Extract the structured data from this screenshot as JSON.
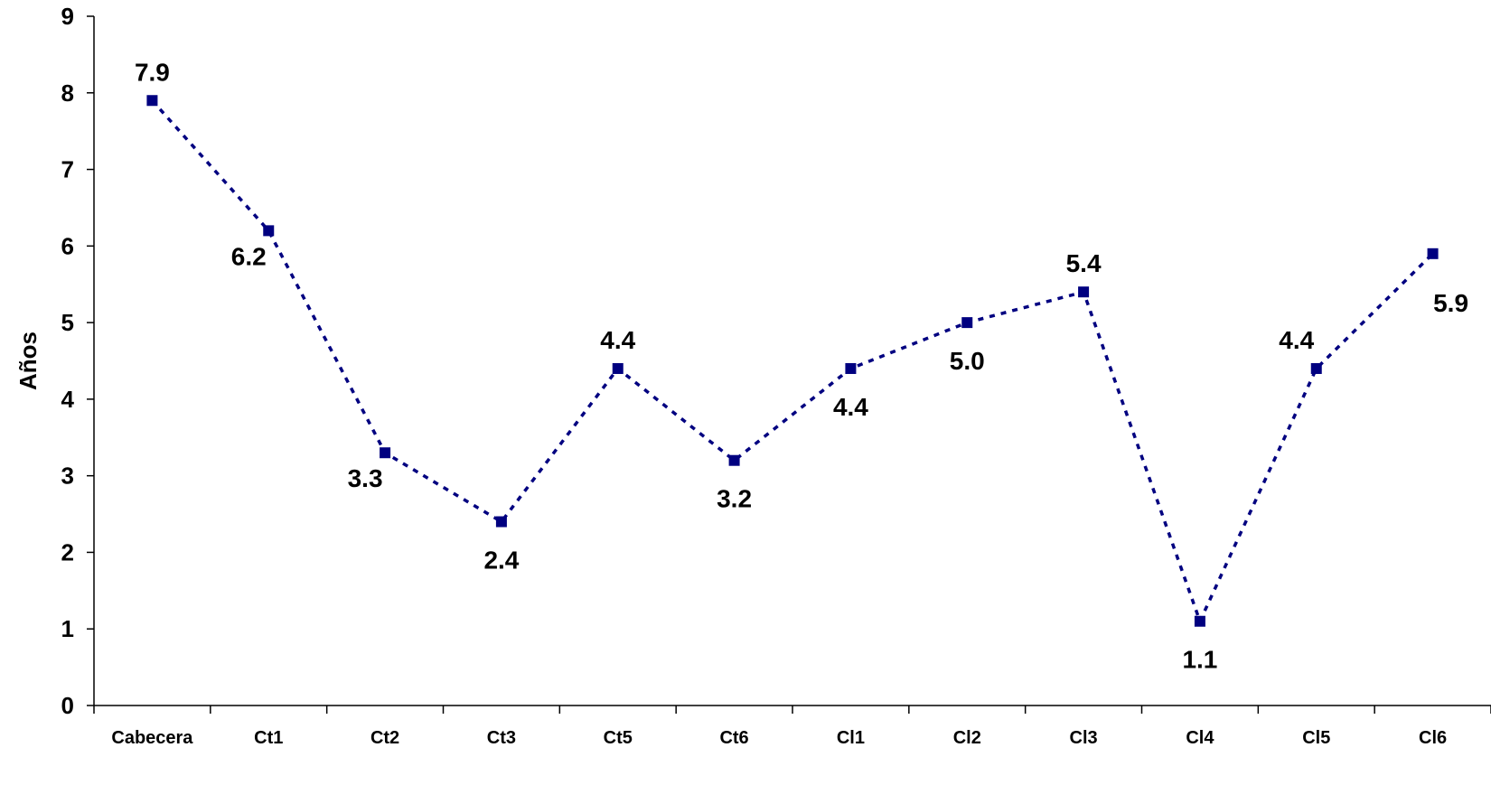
{
  "chart_data": {
    "type": "line",
    "title": "",
    "xlabel": "",
    "ylabel": "Años",
    "ylim": [
      0,
      9
    ],
    "yticks": [
      0,
      1,
      2,
      3,
      4,
      5,
      6,
      7,
      8,
      9
    ],
    "categories": [
      "Cabecera",
      "Ct1",
      "Ct2",
      "Ct3",
      "Ct5",
      "Ct6",
      "Cl1",
      "Cl2",
      "Cl3",
      "Cl4",
      "Cl5",
      "Cl6"
    ],
    "series": [
      {
        "values": [
          7.9,
          6.2,
          3.3,
          2.4,
          4.4,
          3.2,
          4.4,
          5.0,
          5.4,
          1.1,
          4.4,
          5.9
        ],
        "labels": [
          "7.9",
          "6.2",
          "3.3",
          "2.4",
          "4.4",
          "3.2",
          "4.4",
          "5.0",
          "5.4",
          "1.1",
          "4.4",
          "5.9"
        ],
        "color": "#000080",
        "line_style": "dotted",
        "marker": "square"
      }
    ],
    "data_label_positions": [
      "above",
      "below-left",
      "below-left",
      "below",
      "above",
      "below",
      "below",
      "below",
      "above",
      "below",
      "above-left",
      "below-right"
    ],
    "grid": false,
    "legend": "none"
  }
}
